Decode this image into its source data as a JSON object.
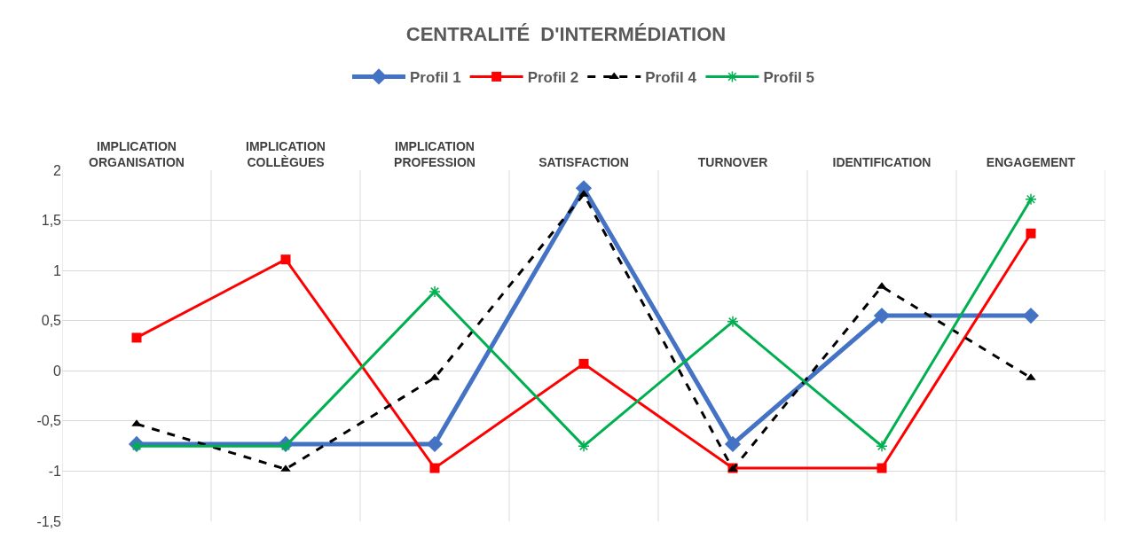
{
  "chart_data": {
    "type": "line",
    "title": "CENTRALITÉ  D'INTERMÉDIATION",
    "categories": [
      "IMPLICATION ORGANISATION",
      "IMPLICATION COLLÈGUES",
      "IMPLICATION PROFESSION",
      "SATISFACTION",
      "TURNOVER",
      "IDENTIFICATION",
      "ENGAGEMENT"
    ],
    "series": [
      {
        "name": "Profil 1",
        "color": "#4472c4",
        "marker": "diamond",
        "line_style": "solid",
        "values": [
          -0.73,
          -0.73,
          -0.73,
          1.82,
          -0.73,
          0.55,
          0.55
        ]
      },
      {
        "name": "Profil 2",
        "color": "#ff0000",
        "marker": "square",
        "line_style": "solid",
        "values": [
          0.33,
          1.11,
          -0.97,
          0.07,
          -0.97,
          -0.97,
          1.37
        ]
      },
      {
        "name": "Profil 4",
        "color": "#000000",
        "marker": "triangle",
        "line_style": "dashed",
        "values": [
          -0.53,
          -0.98,
          -0.07,
          1.76,
          -0.98,
          0.84,
          -0.07
        ]
      },
      {
        "name": "Profil 5",
        "color": "#00b050",
        "marker": "cross",
        "line_style": "solid",
        "values": [
          -0.75,
          -0.75,
          0.79,
          -0.75,
          0.49,
          -0.75,
          1.71
        ]
      }
    ],
    "ylim": [
      -1.5,
      2
    ],
    "yticks": [
      {
        "value": -1.5,
        "label": "-1,5"
      },
      {
        "value": -1,
        "label": "-1"
      },
      {
        "value": -0.5,
        "label": "-0,5"
      },
      {
        "value": 0,
        "label": "0"
      },
      {
        "value": 0.5,
        "label": "0,5"
      },
      {
        "value": 1,
        "label": "1"
      },
      {
        "value": 1.5,
        "label": "1,5"
      },
      {
        "value": 2,
        "label": "2"
      }
    ],
    "grid": true,
    "legend": "top"
  }
}
